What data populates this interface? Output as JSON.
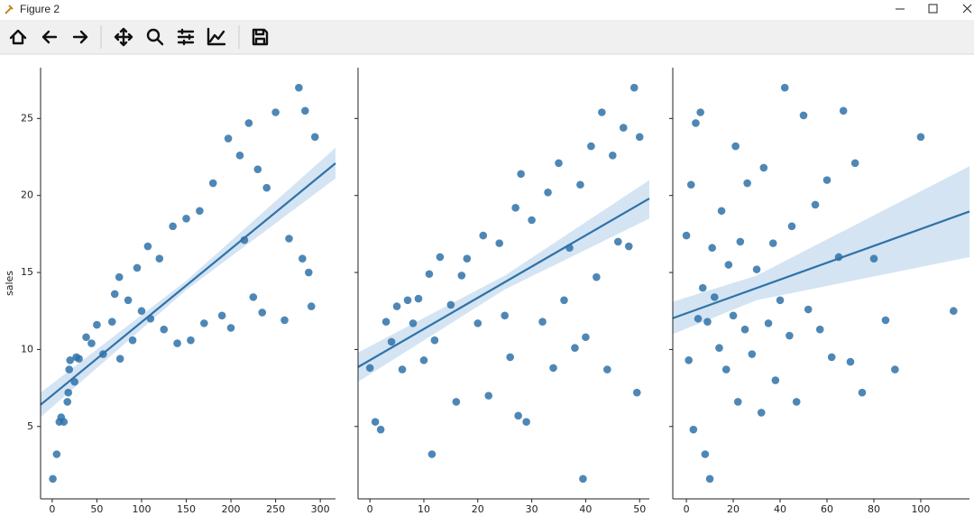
{
  "window": {
    "title": "Figure 2"
  },
  "chart_data": [
    {
      "type": "scatter",
      "ylabel": "sales",
      "color": "#2f72a8",
      "band_color": "#c6dbef",
      "xlim": [
        -13,
        317
      ],
      "ylim": [
        0.3,
        28.3
      ],
      "xticks": [
        0,
        50,
        100,
        150,
        200,
        250,
        300
      ],
      "yticks": [
        5,
        10,
        15,
        20,
        25
      ],
      "x": [
        0.7,
        5,
        8,
        10,
        13,
        17,
        18,
        19,
        20,
        25,
        27,
        30,
        38,
        44,
        50,
        57,
        67,
        70,
        75,
        76,
        85,
        90,
        95,
        100,
        107,
        110,
        120,
        125,
        135,
        140,
        150,
        155,
        165,
        170,
        180,
        190,
        197,
        200,
        210,
        215,
        220,
        225,
        230,
        235,
        240,
        250,
        260,
        265,
        276,
        280,
        283,
        290,
        294,
        287
      ],
      "values": [
        1.6,
        3.2,
        5.3,
        5.6,
        5.3,
        6.6,
        7.2,
        8.7,
        9.3,
        7.9,
        9.5,
        9.4,
        10.8,
        10.4,
        11.6,
        9.7,
        11.8,
        13.6,
        14.7,
        9.4,
        13.2,
        10.6,
        15.3,
        12.5,
        16.7,
        12.0,
        15.9,
        11.3,
        18.0,
        10.4,
        18.5,
        10.6,
        19.0,
        11.7,
        20.8,
        12.2,
        23.7,
        11.4,
        22.6,
        17.1,
        24.7,
        13.4,
        21.7,
        12.4,
        20.5,
        25.4,
        11.9,
        17.2,
        27.0,
        15.9,
        25.5,
        12.8,
        23.8,
        15.0
      ],
      "fit": {
        "x": [
          -13,
          317
        ],
        "values": [
          6.41,
          22.09
        ]
      },
      "band": {
        "x": [
          -13,
          150,
          317
        ],
        "lower": [
          5.6,
          13.86,
          21.1
        ],
        "upper": [
          7.2,
          14.46,
          23.1
        ]
      }
    },
    {
      "type": "scatter",
      "color": "#2f72a8",
      "band_color": "#c6dbef",
      "xlim": [
        -2.2,
        51.8
      ],
      "ylim": [
        0.3,
        28.3
      ],
      "xticks": [
        0,
        10,
        20,
        30,
        40,
        50
      ],
      "x": [
        0,
        1,
        2,
        3,
        4,
        5,
        6,
        7,
        8,
        9,
        10,
        11,
        11.5,
        12,
        13,
        15,
        16,
        17,
        18,
        20,
        21,
        22,
        24,
        25,
        26,
        27,
        27.5,
        28,
        29,
        30,
        32,
        33,
        34,
        35,
        36,
        37,
        38,
        39,
        39.5,
        40,
        41,
        42,
        43,
        44,
        45,
        46,
        47,
        48,
        49,
        49.5,
        50
      ],
      "values": [
        8.8,
        5.3,
        4.8,
        11.8,
        10.5,
        12.8,
        8.7,
        13.2,
        11.7,
        13.3,
        9.3,
        14.9,
        3.2,
        10.6,
        16.0,
        12.9,
        6.6,
        14.8,
        15.9,
        11.7,
        17.4,
        7.0,
        16.9,
        12.2,
        9.5,
        19.2,
        5.7,
        21.4,
        5.3,
        18.4,
        11.8,
        20.2,
        8.8,
        22.1,
        13.2,
        16.6,
        10.1,
        20.7,
        1.6,
        10.8,
        23.2,
        14.7,
        25.4,
        8.7,
        22.6,
        17.0,
        24.4,
        16.7,
        27.0,
        7.2,
        23.8
      ],
      "fit": {
        "x": [
          -2.2,
          51.8
        ],
        "values": [
          8.86,
          19.8
        ]
      },
      "band": {
        "x": [
          -2.2,
          25,
          51.8
        ],
        "lower": [
          7.9,
          13.9,
          18.5
        ],
        "upper": [
          9.8,
          14.8,
          21.0
        ]
      }
    },
    {
      "type": "scatter",
      "color": "#2f72a8",
      "band_color": "#c6dbef",
      "xlim": [
        -5.8,
        120.8
      ],
      "ylim": [
        0.3,
        28.3
      ],
      "xticks": [
        0,
        20,
        40,
        60,
        80,
        100
      ],
      "x": [
        0,
        1,
        2,
        3,
        4,
        5,
        6,
        7,
        8,
        9,
        10,
        11,
        12,
        14,
        15,
        17,
        18,
        20,
        21,
        22,
        23,
        25,
        26,
        28,
        30,
        32,
        33,
        35,
        37,
        38,
        40,
        42,
        44,
        45,
        47,
        50,
        52,
        55,
        57,
        60,
        62,
        65,
        67,
        70,
        72,
        75,
        80,
        85,
        89,
        100,
        114
      ],
      "values": [
        17.4,
        9.3,
        20.7,
        4.8,
        24.7,
        12.0,
        25.4,
        14.0,
        3.2,
        11.8,
        1.6,
        16.6,
        13.4,
        10.1,
        19.0,
        8.7,
        15.5,
        12.2,
        23.2,
        6.6,
        17.0,
        11.3,
        20.8,
        9.7,
        15.2,
        5.9,
        21.8,
        11.7,
        16.9,
        8.0,
        13.2,
        27.0,
        10.9,
        18.0,
        6.6,
        25.2,
        12.6,
        19.4,
        11.3,
        21.0,
        9.5,
        16.0,
        25.5,
        9.2,
        22.1,
        7.2,
        15.9,
        11.9,
        8.7,
        23.8,
        12.5
      ],
      "fit": {
        "x": [
          -5.8,
          120.8
        ],
        "values": [
          12.03,
          18.96
        ]
      },
      "band": {
        "x": [
          -5.8,
          30,
          120.8
        ],
        "lower": [
          11.0,
          13.2,
          16.0
        ],
        "upper": [
          13.1,
          14.8,
          21.9
        ]
      }
    }
  ]
}
